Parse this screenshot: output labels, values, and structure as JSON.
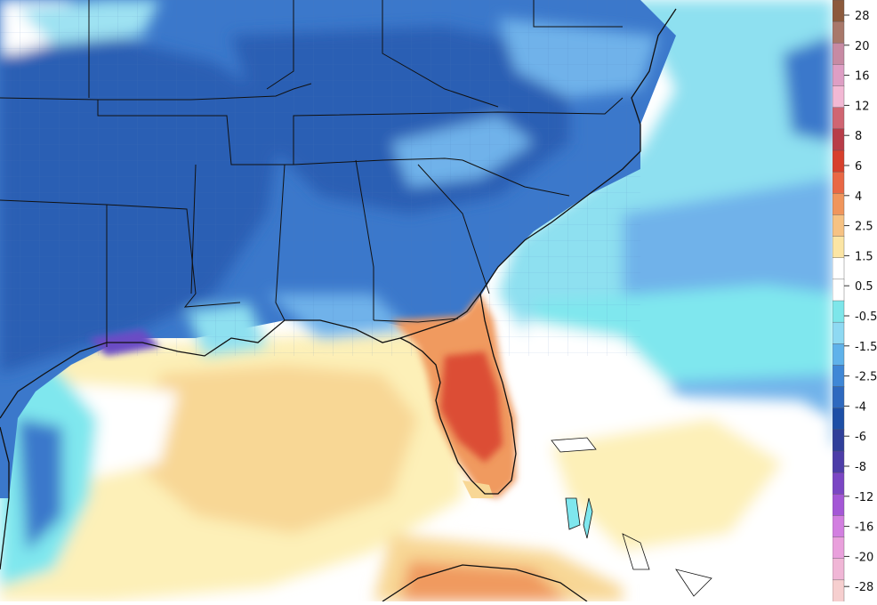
{
  "legend": {
    "labels": [
      "28",
      "20",
      "16",
      "12",
      "8",
      "6",
      "4",
      "2.5",
      "1.5",
      "0.5",
      "-0.5",
      "-1.5",
      "-2.5",
      "-4",
      "-6",
      "-8",
      "-12",
      "-16",
      "-20",
      "-28"
    ],
    "colors": [
      "#8c5a3c",
      "#a8786a",
      "#c78aa3",
      "#de9ec4",
      "#f2b8d4",
      "#d06572",
      "#b83c48",
      "#d7402c",
      "#e96845",
      "#f0955c",
      "#f6c283",
      "#fbe5a4",
      "#ffffff",
      "#ffffff",
      "#7de6ea",
      "#8ed9f2",
      "#5fb2ea",
      "#3f87d6",
      "#2e69bf",
      "#1d4fa6",
      "#2f3f9a",
      "#4d3da8",
      "#7b46c4",
      "#a457d6",
      "#d27fe0",
      "#e9a0dc",
      "#f0b6d6",
      "#f6cfcf"
    ]
  },
  "map": {
    "colors": {
      "deep_blue": "#2a5eb4",
      "mid_blue": "#3b78cb",
      "light_blue": "#6fb2ea",
      "pale_blue": "#9ee2f2",
      "cyan": "#7fe7ee",
      "white": "#ffffff",
      "cream": "#fdf0b8",
      "tan": "#f8d795",
      "orange": "#f09a5e",
      "red": "#dc4e34",
      "purple": "#6a4cc4",
      "border": "#111111",
      "county": "#4f78b8"
    }
  }
}
